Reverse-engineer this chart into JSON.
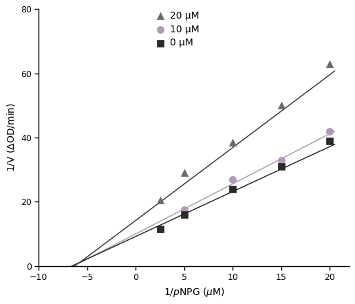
{
  "series": [
    {
      "label": "20 μM",
      "marker": "^",
      "marker_color": "#6a6a6a",
      "line_color": "#3a3a3a",
      "x_data": [
        2.5,
        5,
        10,
        15,
        20
      ],
      "y_data": [
        20.5,
        29.0,
        38.5,
        50.0,
        63.0
      ],
      "fit_slope": 2.27,
      "fit_intercept": 14.2
    },
    {
      "label": "10 μM",
      "marker": "o",
      "marker_color": "#b09ab5",
      "line_color": "#b09ab5",
      "x_data": [
        2.5,
        5,
        10,
        15,
        20
      ],
      "y_data": [
        11.5,
        17.5,
        27.0,
        33.0,
        42.0
      ],
      "fit_slope": 1.56,
      "fit_intercept": 10.0
    },
    {
      "label": "0 μM",
      "marker": "s",
      "marker_color": "#2a2a2a",
      "line_color": "#2a2a2a",
      "x_data": [
        2.5,
        5,
        10,
        15,
        20
      ],
      "y_data": [
        11.5,
        16.0,
        24.0,
        31.0,
        39.0
      ],
      "fit_slope": 1.4,
      "fit_intercept": 9.2
    }
  ],
  "fit_x_start": -7.5,
  "fit_x_end": 20.5,
  "xlim": [
    -10,
    22
  ],
  "ylim": [
    0,
    80
  ],
  "xticks": [
    -10,
    -5,
    0,
    5,
    10,
    15,
    20
  ],
  "yticks": [
    0,
    20,
    40,
    60,
    80
  ],
  "marker_size": 55,
  "line_width": 1.1,
  "legend_fontsize": 10,
  "axis_fontsize": 10,
  "tick_fontsize": 9
}
